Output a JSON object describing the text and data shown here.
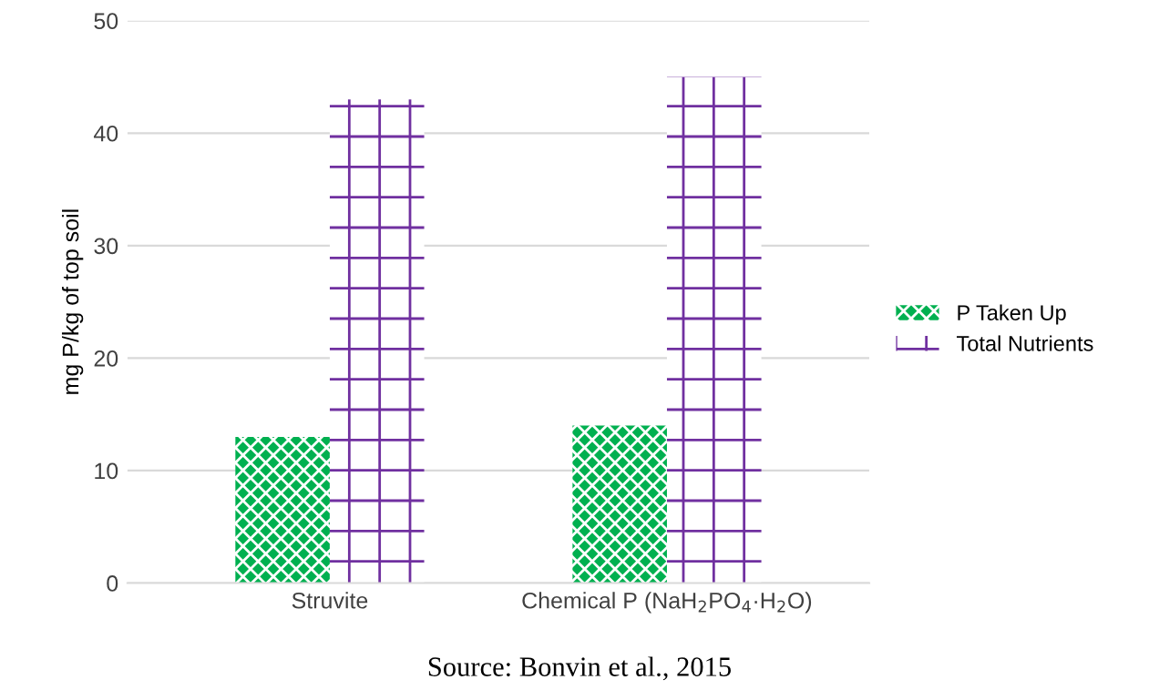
{
  "chart_data": {
    "type": "bar",
    "categories": [
      "Struvite",
      "Chemical P (NaH$_{2}$PO$_{4}$·H$_{2}$O)"
    ],
    "series": [
      {
        "name": "P Taken Up",
        "color": "#00b050",
        "values": [
          13,
          14
        ]
      },
      {
        "name": "Total Nutrients",
        "color": "#7030a0",
        "values": [
          43,
          45
        ]
      }
    ],
    "ylabel": "mg P/kg of top soil",
    "ylim": [
      0,
      50
    ],
    "yticks": [
      0,
      10,
      20,
      30,
      40,
      50
    ],
    "grid": "y",
    "legend": "right",
    "annotations": [
      "Source: Bonvin et al., 2015"
    ]
  }
}
